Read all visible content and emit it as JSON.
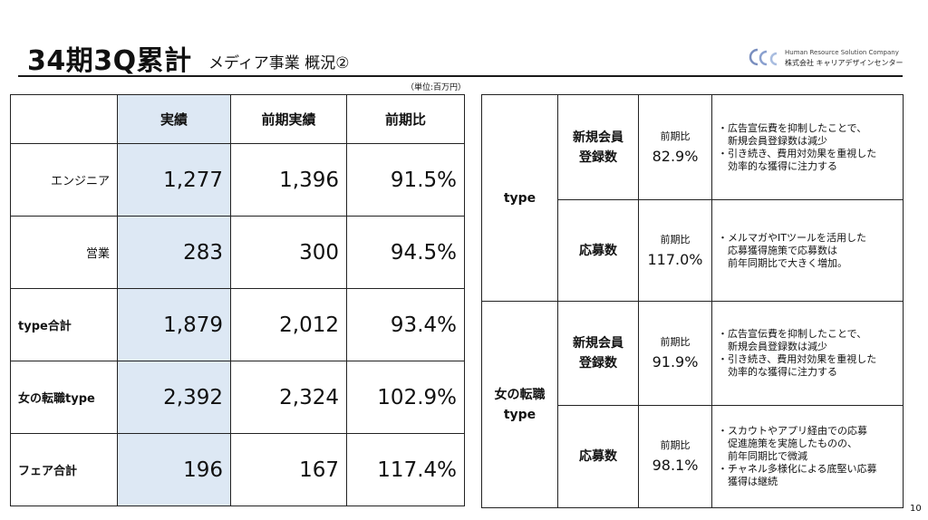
{
  "header": {
    "title": "34期3Q累計",
    "subtitle": "メディア事業 概況②",
    "unit_note": "（単位:百万円）"
  },
  "logo": {
    "tagline": "Human Resource Solution Company",
    "company_name": "株式会社 キャリアデザインセンター"
  },
  "left_table": {
    "columns": [
      "実績",
      "前期実績",
      "前期比"
    ],
    "rows": [
      {
        "label": "エンジニア",
        "actual": "1,277",
        "prior": "1,396",
        "ratio": "91.5%"
      },
      {
        "label": "営業",
        "actual": "283",
        "prior": "300",
        "ratio": "94.5%"
      },
      {
        "label": "type合計",
        "actual": "1,879",
        "prior": "2,012",
        "ratio": "93.4%"
      },
      {
        "label": "女の転職type",
        "actual": "2,392",
        "prior": "2,324",
        "ratio": "102.9%"
      },
      {
        "label": "フェア合計",
        "actual": "196",
        "prior": "167",
        "ratio": "117.4%"
      }
    ]
  },
  "right_table": {
    "groups": [
      {
        "media_lines": [
          "type"
        ],
        "items": [
          {
            "metric_lines": [
              "新規会員",
              "登録数"
            ],
            "ratio_label": "前期比",
            "ratio_value": "82.9%",
            "notes": [
              "・広告宣伝費を抑制したことで、",
              "　新規会員登録数は減少",
              "・引き続き、費用対効果を重視した",
              "　効率的な獲得に注力する"
            ]
          },
          {
            "metric_lines": [
              "応募数"
            ],
            "ratio_label": "前期比",
            "ratio_value": "117.0%",
            "notes": [
              "・メルマガやITツールを活用した",
              "　応募獲得施策で応募数は",
              "　前年同期比で大きく増加。"
            ]
          }
        ]
      },
      {
        "media_lines": [
          "女の転職",
          "type"
        ],
        "items": [
          {
            "metric_lines": [
              "新規会員",
              "登録数"
            ],
            "ratio_label": "前期比",
            "ratio_value": "91.9%",
            "notes": [
              "・広告宣伝費を抑制したことで、",
              "　新規会員登録数は減少",
              "・引き続き、費用対効果を重視した",
              "　効率的な獲得に注力する"
            ]
          },
          {
            "metric_lines": [
              "応募数"
            ],
            "ratio_label": "前期比",
            "ratio_value": "98.1%",
            "notes": [
              "・スカウトやアプリ経由での応募",
              "　促進施策を実施したものの、",
              "　前年同期比で微減",
              "・チャネル多様化による底堅い応募",
              "　獲得は継続"
            ]
          }
        ]
      }
    ]
  },
  "page_number": "10"
}
